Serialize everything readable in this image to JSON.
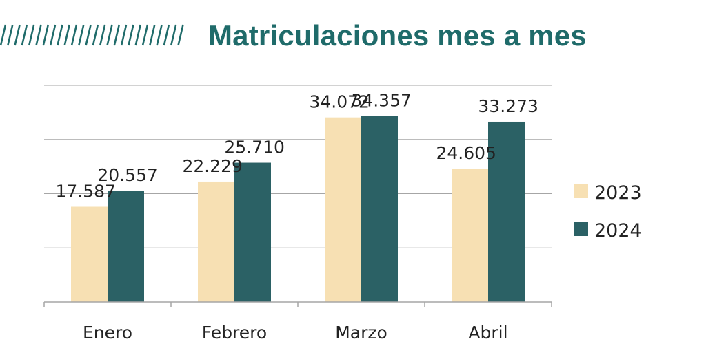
{
  "header": {
    "title": "Matriculaciones mes a mes"
  },
  "colors": {
    "title": "#1f6b6a",
    "series_2023": "#f7e0b3",
    "series_2024": "#2b6165",
    "grid": "#a6a6a6"
  },
  "chart_data": {
    "type": "bar",
    "title": "Matriculaciones mes a mes",
    "categories": [
      "Enero",
      "Febrero",
      "Marzo",
      "Abril"
    ],
    "series": [
      {
        "name": "2023",
        "values": [
          17587,
          22229,
          34072,
          24605
        ],
        "labels": [
          "17.587",
          "22.229",
          "34.072",
          "24.605"
        ]
      },
      {
        "name": "2024",
        "values": [
          20557,
          25710,
          34357,
          33273
        ],
        "labels": [
          "20.557",
          "25.710",
          "34.357",
          "33.273"
        ]
      }
    ],
    "ylim": [
      0,
      40000
    ],
    "y_gridlines": [
      0,
      10000,
      20000,
      30000,
      40000
    ],
    "grid": true,
    "legend": "right",
    "xlabel": "",
    "ylabel": ""
  }
}
